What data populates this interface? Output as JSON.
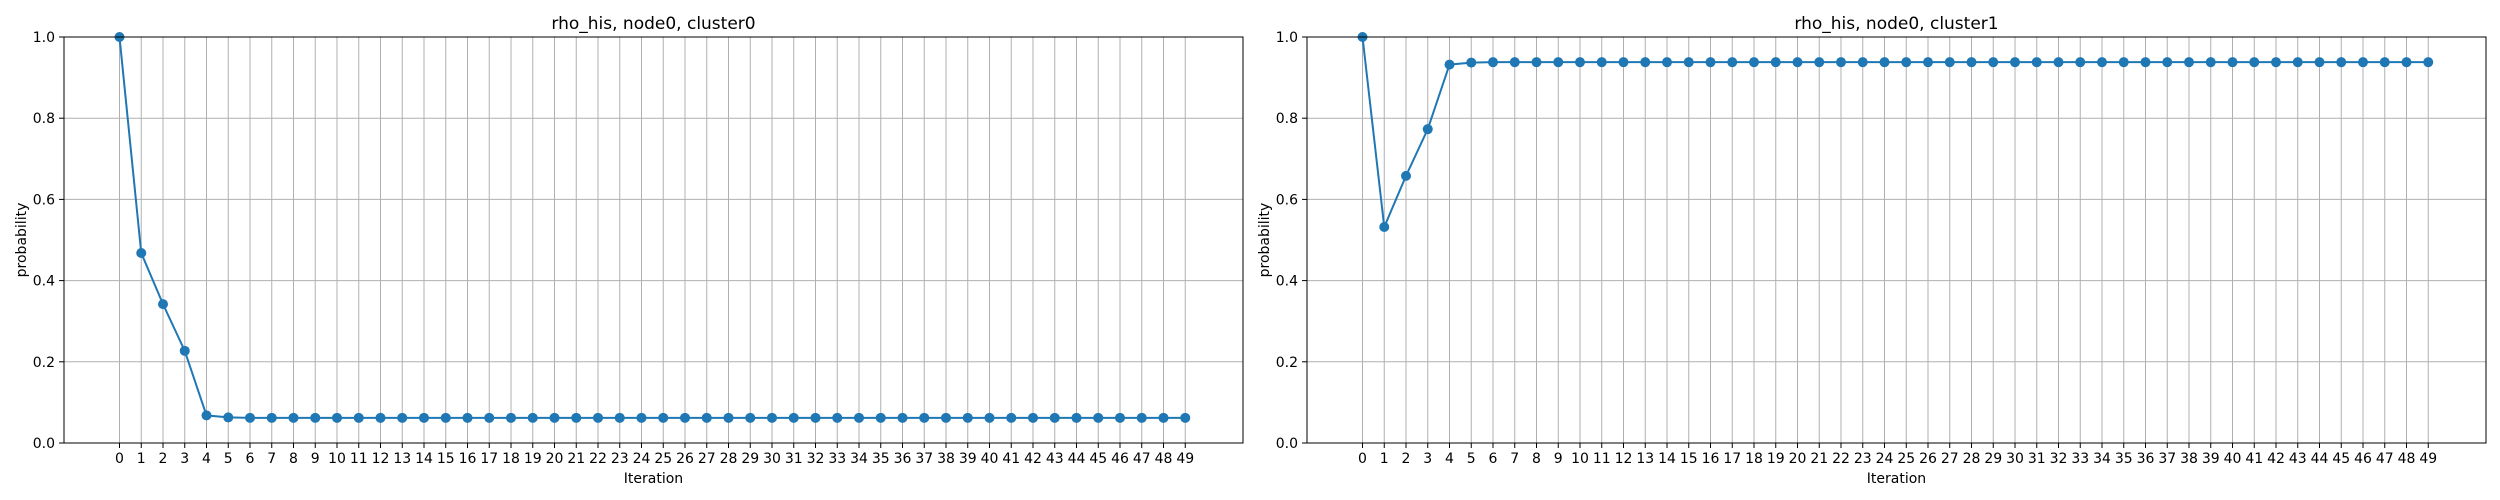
{
  "figure": {
    "background": "#ffffff"
  },
  "chart_data": [
    {
      "type": "line",
      "title": "rho_his, node0, cluster0",
      "xlabel": "Iteration",
      "ylabel": "probability",
      "x": [
        0,
        1,
        2,
        3,
        4,
        5,
        6,
        7,
        8,
        9,
        10,
        11,
        12,
        13,
        14,
        15,
        16,
        17,
        18,
        19,
        20,
        21,
        22,
        23,
        24,
        25,
        26,
        27,
        28,
        29,
        30,
        31,
        32,
        33,
        34,
        35,
        36,
        37,
        38,
        39,
        40,
        41,
        42,
        43,
        44,
        45,
        46,
        47,
        48,
        49
      ],
      "x_tick_labels": [
        "0",
        "1",
        "2",
        "3",
        "4",
        "5",
        "6",
        "7",
        "8",
        "9",
        "10",
        "11",
        "12",
        "13",
        "14",
        "15",
        "16",
        "17",
        "18",
        "19",
        "20",
        "21",
        "22",
        "23",
        "24",
        "25",
        "26",
        "27",
        "28",
        "29",
        "30",
        "31",
        "32",
        "33",
        "34",
        "35",
        "36",
        "37",
        "38",
        "39",
        "40",
        "41",
        "42",
        "43",
        "44",
        "45",
        "46",
        "47",
        "48",
        "49"
      ],
      "series": [
        {
          "values": [
            1.0,
            0.468,
            0.342,
            0.227,
            0.068,
            0.063,
            0.062,
            0.062,
            0.062,
            0.062,
            0.062,
            0.062,
            0.062,
            0.062,
            0.062,
            0.062,
            0.062,
            0.062,
            0.062,
            0.062,
            0.062,
            0.062,
            0.062,
            0.062,
            0.062,
            0.062,
            0.062,
            0.062,
            0.062,
            0.062,
            0.062,
            0.062,
            0.062,
            0.062,
            0.062,
            0.062,
            0.062,
            0.062,
            0.062,
            0.062,
            0.062,
            0.062,
            0.062,
            0.062,
            0.062,
            0.062,
            0.062,
            0.062,
            0.062,
            0.062
          ],
          "color": "#1f77b4",
          "marker": "circle"
        }
      ],
      "ylim": [
        0,
        1.0
      ],
      "y_ticks": [
        0.0,
        0.2,
        0.4,
        0.6,
        0.8,
        1.0
      ],
      "y_tick_labels": [
        "0.0",
        "0.2",
        "0.4",
        "0.6",
        "0.8",
        "1.0"
      ],
      "grid": true,
      "grid_color": "#b0b0b0"
    },
    {
      "type": "line",
      "title": "rho_his, node0, cluster1",
      "xlabel": "Iteration",
      "ylabel": "probability",
      "x": [
        0,
        1,
        2,
        3,
        4,
        5,
        6,
        7,
        8,
        9,
        10,
        11,
        12,
        13,
        14,
        15,
        16,
        17,
        18,
        19,
        20,
        21,
        22,
        23,
        24,
        25,
        26,
        27,
        28,
        29,
        30,
        31,
        32,
        33,
        34,
        35,
        36,
        37,
        38,
        39,
        40,
        41,
        42,
        43,
        44,
        45,
        46,
        47,
        48,
        49
      ],
      "x_tick_labels": [
        "0",
        "1",
        "2",
        "3",
        "4",
        "5",
        "6",
        "7",
        "8",
        "9",
        "10",
        "11",
        "12",
        "13",
        "14",
        "15",
        "16",
        "17",
        "18",
        "19",
        "20",
        "21",
        "22",
        "23",
        "24",
        "25",
        "26",
        "27",
        "28",
        "29",
        "30",
        "31",
        "32",
        "33",
        "34",
        "35",
        "36",
        "37",
        "38",
        "39",
        "40",
        "41",
        "42",
        "43",
        "44",
        "45",
        "46",
        "47",
        "48",
        "49"
      ],
      "series": [
        {
          "values": [
            1.0,
            0.532,
            0.658,
            0.773,
            0.932,
            0.937,
            0.938,
            0.938,
            0.938,
            0.938,
            0.938,
            0.938,
            0.938,
            0.938,
            0.938,
            0.938,
            0.938,
            0.938,
            0.938,
            0.938,
            0.938,
            0.938,
            0.938,
            0.938,
            0.938,
            0.938,
            0.938,
            0.938,
            0.938,
            0.938,
            0.938,
            0.938,
            0.938,
            0.938,
            0.938,
            0.938,
            0.938,
            0.938,
            0.938,
            0.938,
            0.938,
            0.938,
            0.938,
            0.938,
            0.938,
            0.938,
            0.938,
            0.938,
            0.938,
            0.938
          ],
          "color": "#1f77b4",
          "marker": "circle"
        }
      ],
      "ylim": [
        0,
        1.0
      ],
      "y_ticks": [
        0.0,
        0.2,
        0.4,
        0.6,
        0.8,
        1.0
      ],
      "y_tick_labels": [
        "0.0",
        "0.2",
        "0.4",
        "0.6",
        "0.8",
        "1.0"
      ],
      "grid": true,
      "grid_color": "#b0b0b0"
    }
  ]
}
